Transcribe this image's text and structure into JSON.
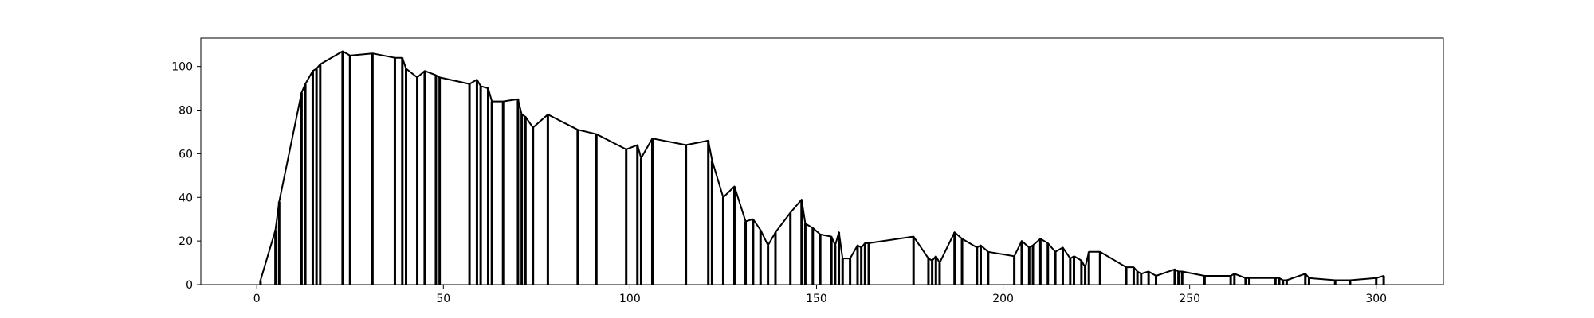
{
  "chart_data": {
    "type": "line",
    "title": "",
    "xlabel": "",
    "ylabel": "",
    "xlim": [
      -15,
      318
    ],
    "ylim": [
      0,
      113
    ],
    "grid": false,
    "x_ticks": [
      0,
      50,
      100,
      150,
      200,
      250,
      300
    ],
    "y_ticks": [
      0,
      20,
      40,
      60,
      80,
      100
    ],
    "x_tick_labels": [
      "0",
      "50",
      "100",
      "150",
      "200",
      "250",
      "300"
    ],
    "y_tick_labels": [
      "0",
      "20",
      "40",
      "60",
      "80",
      "100"
    ],
    "series": [
      {
        "color": "#000000",
        "x": [
          1,
          5,
          6,
          12,
          13,
          15,
          16,
          17,
          23,
          25,
          31,
          37,
          39,
          40,
          43,
          45,
          48,
          49,
          57,
          59,
          60,
          62,
          63,
          66,
          70,
          71,
          72,
          74,
          78,
          86,
          91,
          99,
          102,
          103,
          106,
          115,
          121,
          122,
          125,
          128,
          131,
          133,
          135,
          137,
          139,
          143,
          146,
          147,
          149,
          151,
          154,
          155,
          156,
          157,
          159,
          161,
          162,
          163,
          164,
          176,
          180,
          181,
          182,
          183,
          187,
          189,
          193,
          194,
          196,
          203,
          205,
          207,
          208,
          210,
          212,
          214,
          216,
          218,
          219,
          221,
          222,
          223,
          226,
          233,
          235,
          236,
          237,
          239,
          241,
          246,
          247,
          248,
          254,
          261,
          262,
          265,
          266,
          273,
          274,
          275,
          276,
          281,
          282,
          289,
          293,
          300,
          302
        ],
        "y": [
          2,
          25,
          38,
          88,
          92,
          98,
          99,
          101,
          107,
          105,
          106,
          104,
          104,
          99,
          95,
          98,
          96,
          95,
          92,
          94,
          91,
          90,
          84,
          84,
          85,
          78,
          77,
          72,
          78,
          71,
          69,
          62,
          64,
          58,
          67,
          64,
          66,
          57,
          40,
          45,
          29,
          30,
          25,
          18,
          24,
          33,
          39,
          28,
          26,
          23,
          22,
          18,
          24,
          12,
          12,
          18,
          17,
          19,
          19,
          22,
          12,
          11,
          13,
          10,
          24,
          21,
          17,
          18,
          15,
          13,
          20,
          17,
          18,
          21,
          19,
          15,
          17,
          12,
          13,
          11,
          8,
          15,
          15,
          8,
          8,
          6,
          5,
          6,
          4,
          7,
          6,
          6,
          4,
          4,
          5,
          3,
          3,
          3,
          3,
          2,
          2,
          5,
          3,
          2,
          2,
          3,
          4
        ]
      }
    ]
  }
}
